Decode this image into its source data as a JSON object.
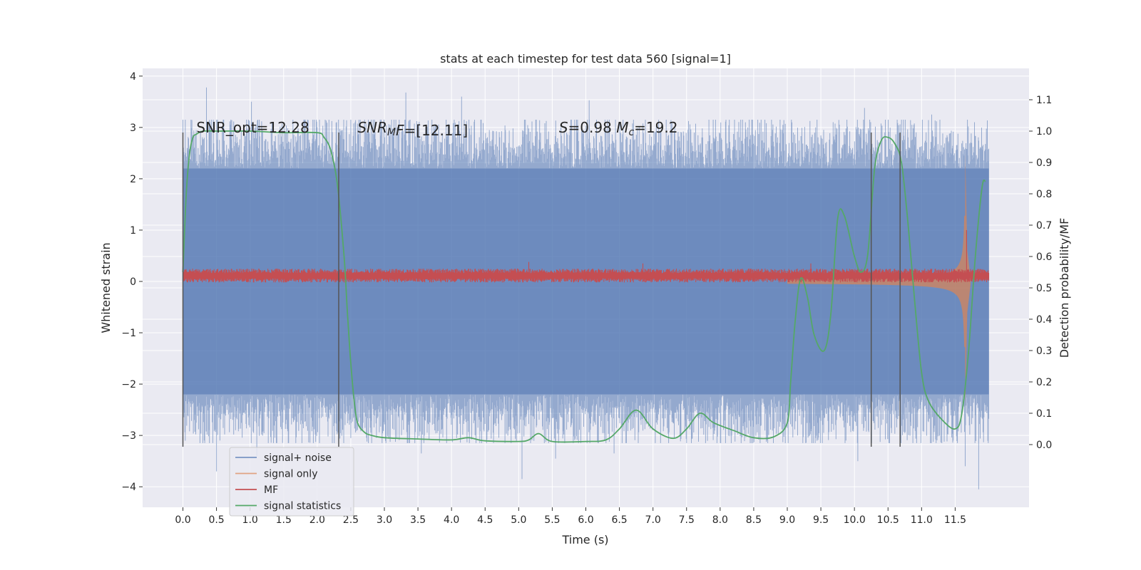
{
  "chart_data": {
    "type": "line",
    "title": "stats at each timestep for test data 560 [signal=1]",
    "xlabel": "Time (s)",
    "ylabel": "Whitened strain",
    "y2label": "Detection probability/MF",
    "xlim": [
      -0.6,
      12.6
    ],
    "ylim": [
      -4.4,
      4.15
    ],
    "y2lim": [
      -0.2,
      1.2
    ],
    "x_ticks": [
      "0.0",
      "0.5",
      "1.0",
      "1.5",
      "2.0",
      "2.5",
      "3.0",
      "3.5",
      "4.0",
      "4.5",
      "5.0",
      "5.5",
      "6.0",
      "6.5",
      "7.0",
      "7.5",
      "8.0",
      "8.5",
      "9.0",
      "9.5",
      "10.0",
      "10.5",
      "11.0",
      "11.5"
    ],
    "y_ticks": [
      "−4",
      "−3",
      "−2",
      "−1",
      "0",
      "1",
      "2",
      "3",
      "4"
    ],
    "y2_ticks": [
      "0.0",
      "0.1",
      "0.2",
      "0.3",
      "0.4",
      "0.5",
      "0.6",
      "0.7",
      "0.8",
      "0.9",
      "1.0",
      "1.1"
    ],
    "grid": true,
    "legend_position": "lower left",
    "annotations": [
      {
        "text": "SNR_opt=12.28",
        "x": 0.2,
        "y": 3.0
      },
      {
        "text_parts": [
          {
            "t": "SNR",
            "style": "italic"
          },
          {
            "t": "M",
            "style": "italic-sub"
          },
          {
            "t": "F",
            "style": "italic"
          },
          {
            "t": "=[12.11]",
            "style": "normal"
          }
        ],
        "x": 2.6,
        "y": 3.0
      },
      {
        "text_parts": [
          {
            "t": "S",
            "style": "italic"
          },
          {
            "t": "=0.98   ",
            "style": "normal"
          },
          {
            "t": "M",
            "style": "italic"
          },
          {
            "t": "c",
            "style": "italic-sub"
          },
          {
            "t": "=19.2",
            "style": "normal"
          }
        ],
        "x": 5.6,
        "y": 3.0
      }
    ],
    "vertical_lines": [
      {
        "x": 0.0,
        "y_range": [
          -3.22,
          2.9
        ]
      },
      {
        "x": 2.32,
        "y_range": [
          -3.22,
          2.9
        ]
      },
      {
        "x": 10.25,
        "y_range": [
          -3.22,
          2.9
        ]
      },
      {
        "x": 10.68,
        "y_range": [
          -3.22,
          2.9
        ]
      }
    ],
    "series": [
      {
        "name": "signal+ noise",
        "color": "#4c72b0",
        "kind": "noise_band",
        "axis": "left",
        "x_range": [
          0.0,
          12.0
        ],
        "core_range": [
          -2.2,
          2.2
        ],
        "peaks_positive": [
          [
            0.35,
            3.78
          ],
          [
            1.02,
            3.5
          ],
          [
            3.32,
            3.68
          ],
          [
            4.15,
            3.6
          ],
          [
            6.05,
            3.53
          ],
          [
            10.15,
            3.38
          ],
          [
            11.15,
            3.25
          ]
        ],
        "peaks_negative": [
          [
            0.5,
            -3.7
          ],
          [
            1.1,
            -3.4
          ],
          [
            3.55,
            -3.35
          ],
          [
            5.05,
            -3.85
          ],
          [
            5.55,
            -3.45
          ],
          [
            6.42,
            -3.35
          ],
          [
            10.05,
            -3.5
          ],
          [
            11.65,
            -3.6
          ],
          [
            11.85,
            -4.05
          ]
        ],
        "typical_max": 3.0,
        "typical_min": -3.0
      },
      {
        "name": "signal only",
        "color": "#dd8452",
        "kind": "chirp",
        "axis": "left",
        "x_range": [
          9.0,
          11.8
        ],
        "amplitude_start": 0.02,
        "amplitude_end": 2.5,
        "merger_time": 11.65
      },
      {
        "name": "MF",
        "color": "#c44e52",
        "kind": "band",
        "axis": "left",
        "x_range": [
          0.0,
          12.0
        ],
        "center": 0.11,
        "half_width": 0.1,
        "spikes": [
          [
            5.15,
            0.38
          ],
          [
            6.85,
            0.35
          ],
          [
            9.35,
            0.35
          ],
          [
            11.67,
            1.0
          ]
        ]
      },
      {
        "name": "signal statistics",
        "color": "#55a868",
        "kind": "line",
        "axis": "right",
        "x": [
          0.0,
          0.05,
          0.1,
          0.15,
          0.2,
          0.3,
          0.5,
          1.0,
          1.5,
          2.0,
          2.1,
          2.2,
          2.3,
          2.4,
          2.45,
          2.5,
          2.55,
          2.6,
          2.7,
          2.8,
          3.0,
          3.5,
          4.0,
          4.25,
          4.5,
          5.0,
          5.15,
          5.3,
          5.5,
          6.0,
          6.3,
          6.5,
          6.75,
          7.0,
          7.3,
          7.5,
          7.7,
          7.9,
          8.2,
          8.5,
          8.8,
          9.0,
          9.05,
          9.12,
          9.2,
          9.3,
          9.4,
          9.55,
          9.65,
          9.75,
          9.85,
          10.0,
          10.1,
          10.2,
          10.3,
          10.4,
          10.5,
          10.6,
          10.7,
          10.8,
          10.9,
          11.0,
          11.1,
          11.3,
          11.5,
          11.6,
          11.7,
          11.8,
          11.9,
          11.95
        ],
        "y": [
          0.55,
          0.8,
          0.93,
          0.98,
          0.99,
          1.0,
          1.0,
          1.0,
          0.995,
          0.995,
          0.98,
          0.94,
          0.83,
          0.6,
          0.42,
          0.26,
          0.14,
          0.07,
          0.04,
          0.03,
          0.022,
          0.018,
          0.015,
          0.022,
          0.012,
          0.01,
          0.015,
          0.035,
          0.01,
          0.01,
          0.015,
          0.05,
          0.11,
          0.05,
          0.02,
          0.05,
          0.1,
          0.07,
          0.045,
          0.022,
          0.025,
          0.07,
          0.2,
          0.4,
          0.53,
          0.47,
          0.35,
          0.3,
          0.42,
          0.72,
          0.73,
          0.6,
          0.55,
          0.61,
          0.88,
          0.97,
          0.98,
          0.96,
          0.9,
          0.7,
          0.45,
          0.23,
          0.14,
          0.08,
          0.05,
          0.1,
          0.3,
          0.6,
          0.82,
          0.84
        ]
      }
    ]
  }
}
